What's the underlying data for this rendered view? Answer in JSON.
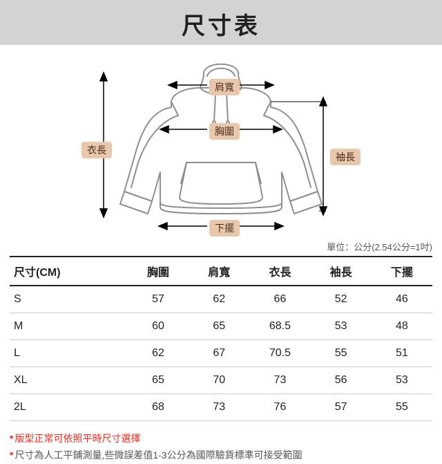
{
  "title": "尺寸表",
  "labels": {
    "shoulder": "肩寬",
    "chest": "胸圍",
    "length": "衣長",
    "sleeve": "袖長",
    "hem": "下擺"
  },
  "unit_note": "單位：公分(2.54公分=1吋)",
  "table": {
    "columns": [
      "尺寸(CM)",
      "胸圍",
      "肩寬",
      "衣長",
      "袖長",
      "下擺"
    ],
    "rows": [
      [
        "S",
        "57",
        "62",
        "66",
        "52",
        "46"
      ],
      [
        "M",
        "60",
        "65",
        "68.5",
        "53",
        "48"
      ],
      [
        "L",
        "62",
        "67",
        "70.5",
        "55",
        "51"
      ],
      [
        "XL",
        "65",
        "70",
        "73",
        "56",
        "53"
      ],
      [
        "2L",
        "68",
        "73",
        "76",
        "57",
        "55"
      ]
    ]
  },
  "notes": {
    "line1_red": "版型正常可依照平時尺寸選擇",
    "line2_black": "尺寸為人工平鋪測量,些微誤差值1-3公分為國際驗貨標準可接受範圍"
  },
  "colors": {
    "title_bg": "#d3d3d3",
    "tag_bg": "#e9c7ad",
    "tag_text": "#4a2e1a",
    "hoodie_stroke": "#8f8f8f",
    "hoodie_fill": "#ffffff",
    "border_dark": "#222222",
    "border_light": "#cccccc",
    "red": "#d93025"
  }
}
